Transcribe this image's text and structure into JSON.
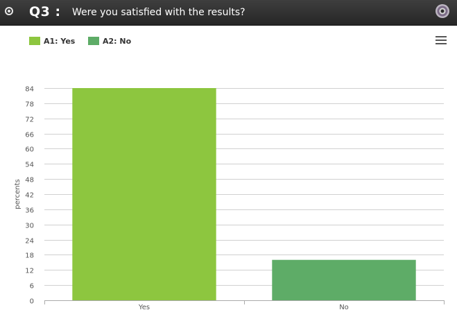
{
  "header": {
    "question_number": "Q3 :",
    "question_text": "Were you satisfied with the results?",
    "background": "#2f2f2f"
  },
  "icons": {
    "left": "radio-icon",
    "right": "disc-icon",
    "menu": "menu-icon"
  },
  "legend": {
    "items": [
      {
        "label": "A1: Yes",
        "color": "#8dc63f"
      },
      {
        "label": "A2: No",
        "color": "#5eac67"
      }
    ]
  },
  "chart_data": {
    "type": "bar",
    "categories": [
      "Yes",
      "No"
    ],
    "values": [
      84,
      16
    ],
    "colors": [
      "#8dc63f",
      "#5eac67"
    ],
    "ylabel": "percents",
    "ylim": [
      0,
      84
    ],
    "yticks": [
      0,
      6,
      12,
      18,
      24,
      30,
      36,
      42,
      48,
      54,
      60,
      66,
      72,
      78,
      84
    ],
    "grid": true,
    "legend_position": "top-left"
  }
}
